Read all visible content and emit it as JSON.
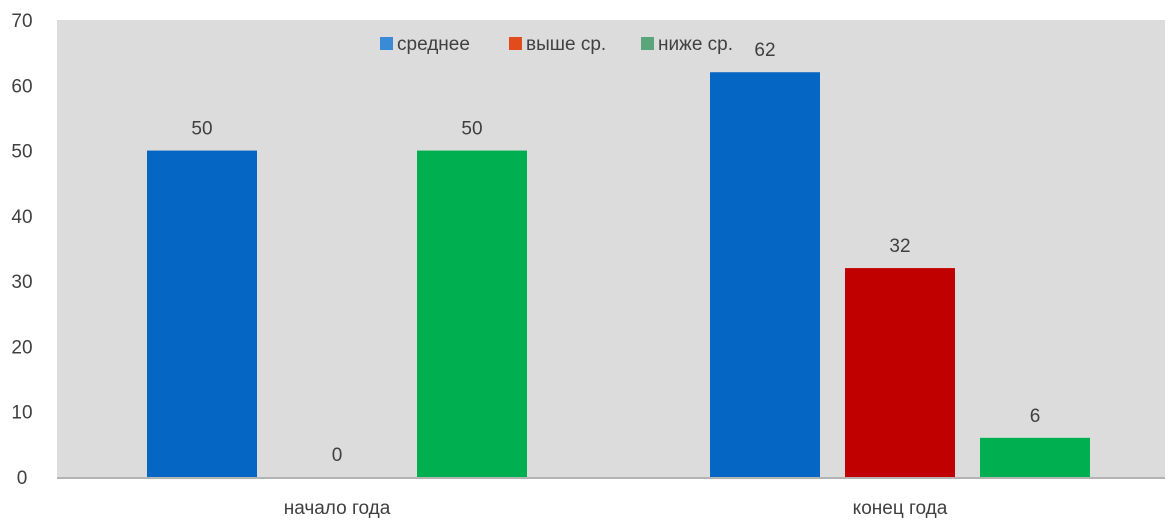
{
  "chart_data": {
    "type": "bar",
    "categories": [
      "начало года",
      "конец года"
    ],
    "series": [
      {
        "name": "среднее",
        "values": [
          50,
          62
        ],
        "color": "#0566c4"
      },
      {
        "name": "выше ср.",
        "values": [
          0,
          32
        ],
        "color": "#c00000"
      },
      {
        "name": "ниже ср.",
        "values": [
          50,
          6
        ],
        "color": "#00b050"
      }
    ],
    "legend_colors": [
      "#3b8ad6",
      "#e24b1c",
      "#5aa67a"
    ],
    "ylim": [
      0,
      70
    ],
    "yticks": [
      0,
      10,
      20,
      30,
      40,
      50,
      60,
      70
    ],
    "legend_position": "top",
    "plot_background": "#dcdcdc",
    "grid": false,
    "data_labels": true
  }
}
